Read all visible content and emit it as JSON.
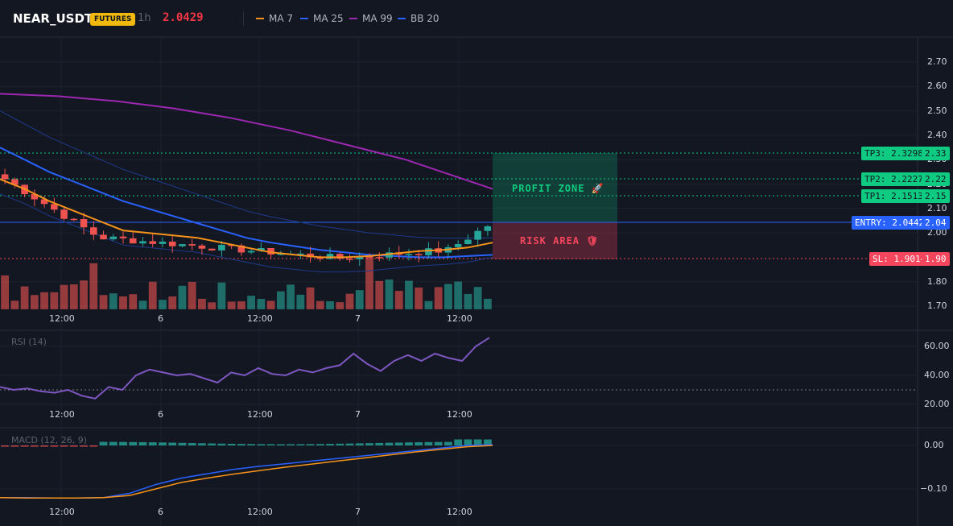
{
  "header": {
    "symbol": "NEAR_USDT",
    "badge": "FUTURES",
    "timeframe": "1h",
    "last_price": "2.0429",
    "legend": [
      {
        "label": "MA 7",
        "color": "#f7931a"
      },
      {
        "label": "MA 25",
        "color": "#2962ff"
      },
      {
        "label": "MA 99",
        "color": "#9c27b0"
      },
      {
        "label": "BB 20",
        "color": "#1e3a8a"
      }
    ]
  },
  "price_axis": [
    "2.70",
    "2.60",
    "2.50",
    "2.40",
    "2.30",
    "2.20",
    "2.10",
    "2.00",
    "1.80",
    "1.70"
  ],
  "levels": {
    "tp3": {
      "label": "TP3: 2.3298",
      "axis": "2.33",
      "value": 2.3298
    },
    "tp2": {
      "label": "TP2: 2.2227",
      "axis": "2.22",
      "value": 2.2227
    },
    "tp1": {
      "label": "TP1: 2.1513",
      "axis": "2.15",
      "value": 2.1513
    },
    "entry": {
      "label": "ENTRY: 2.0442",
      "axis": "2.04",
      "value": 2.0442
    },
    "sl": {
      "label": "SL: 1.9014",
      "axis": "1.90",
      "value": 1.9014
    }
  },
  "zones": {
    "profit": "PROFIT ZONE 🚀",
    "risk": "RISK AREA 🛡"
  },
  "time_axis": [
    "12:00",
    "6",
    "12:00",
    "7",
    "12:00"
  ],
  "rsi": {
    "title": "RSI (14)",
    "axis": [
      "60.00",
      "40.00",
      "20.00"
    ]
  },
  "macd": {
    "title": "MACD (12, 26, 9)",
    "axis": [
      "0.00",
      "−0.10"
    ]
  },
  "colors": {
    "up": "#26a69a",
    "down": "#ef5350",
    "profit": "#0ecb81",
    "risk": "#f6465d",
    "entry": "#2962ff"
  },
  "chart_data": {
    "type": "candlestick",
    "price_range": [
      1.68,
      2.78
    ],
    "ma99": [
      2.57,
      2.565,
      2.56,
      2.55,
      2.54,
      2.525,
      2.51,
      2.49,
      2.47,
      2.445,
      2.42,
      2.39,
      2.36,
      2.33,
      2.3,
      2.26,
      2.22,
      2.18
    ],
    "ma25": [
      2.35,
      2.3,
      2.25,
      2.21,
      2.17,
      2.13,
      2.1,
      2.07,
      2.04,
      2.01,
      1.98,
      1.96,
      1.945,
      1.93,
      1.92,
      1.91,
      1.905,
      1.9,
      1.9,
      1.905,
      1.91
    ],
    "ma7": [
      2.22,
      2.18,
      2.13,
      2.09,
      2.05,
      2.01,
      2.0,
      1.99,
      1.98,
      1.96,
      1.94,
      1.92,
      1.91,
      1.9,
      1.9,
      1.905,
      1.915,
      1.925,
      1.93,
      1.94,
      1.96
    ],
    "rsi_values": [
      32,
      30,
      31,
      29,
      28,
      30,
      26,
      24,
      32,
      30,
      40,
      44,
      42,
      40,
      41,
      38,
      35,
      42,
      40,
      45,
      41,
      40,
      44,
      42,
      45,
      47,
      55,
      48,
      43,
      50,
      54,
      50,
      55,
      52,
      50,
      60,
      66
    ],
    "macd_line": [
      -0.12,
      -0.12,
      -0.121,
      -0.121,
      -0.12,
      -0.11,
      -0.09,
      -0.075,
      -0.065,
      -0.055,
      -0.048,
      -0.042,
      -0.036,
      -0.03,
      -0.024,
      -0.018,
      -0.012,
      -0.006,
      0.0,
      0.002
    ],
    "signal_line": [
      -0.12,
      -0.121,
      -0.121,
      -0.121,
      -0.12,
      -0.115,
      -0.1,
      -0.085,
      -0.075,
      -0.066,
      -0.058,
      -0.05,
      -0.043,
      -0.036,
      -0.029,
      -0.022,
      -0.015,
      -0.009,
      -0.003,
      0.0
    ]
  }
}
